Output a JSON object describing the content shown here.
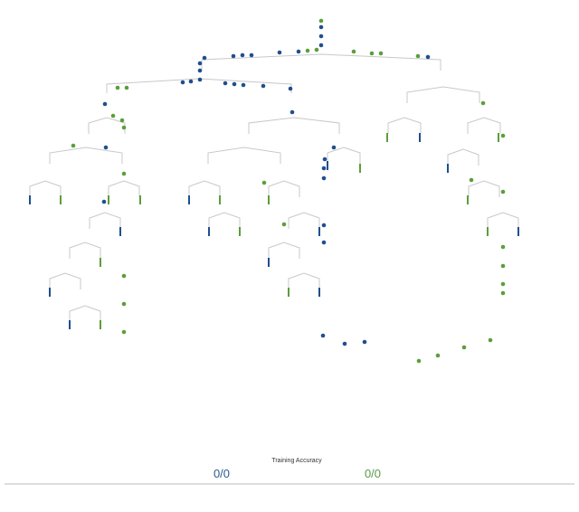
{
  "accuracy": {
    "title": "Training Accuracy",
    "scores": [
      {
        "text": "0/0",
        "color": "#2a5a8f"
      },
      {
        "text": "0/0",
        "color": "#5a9a45"
      }
    ]
  }
}
